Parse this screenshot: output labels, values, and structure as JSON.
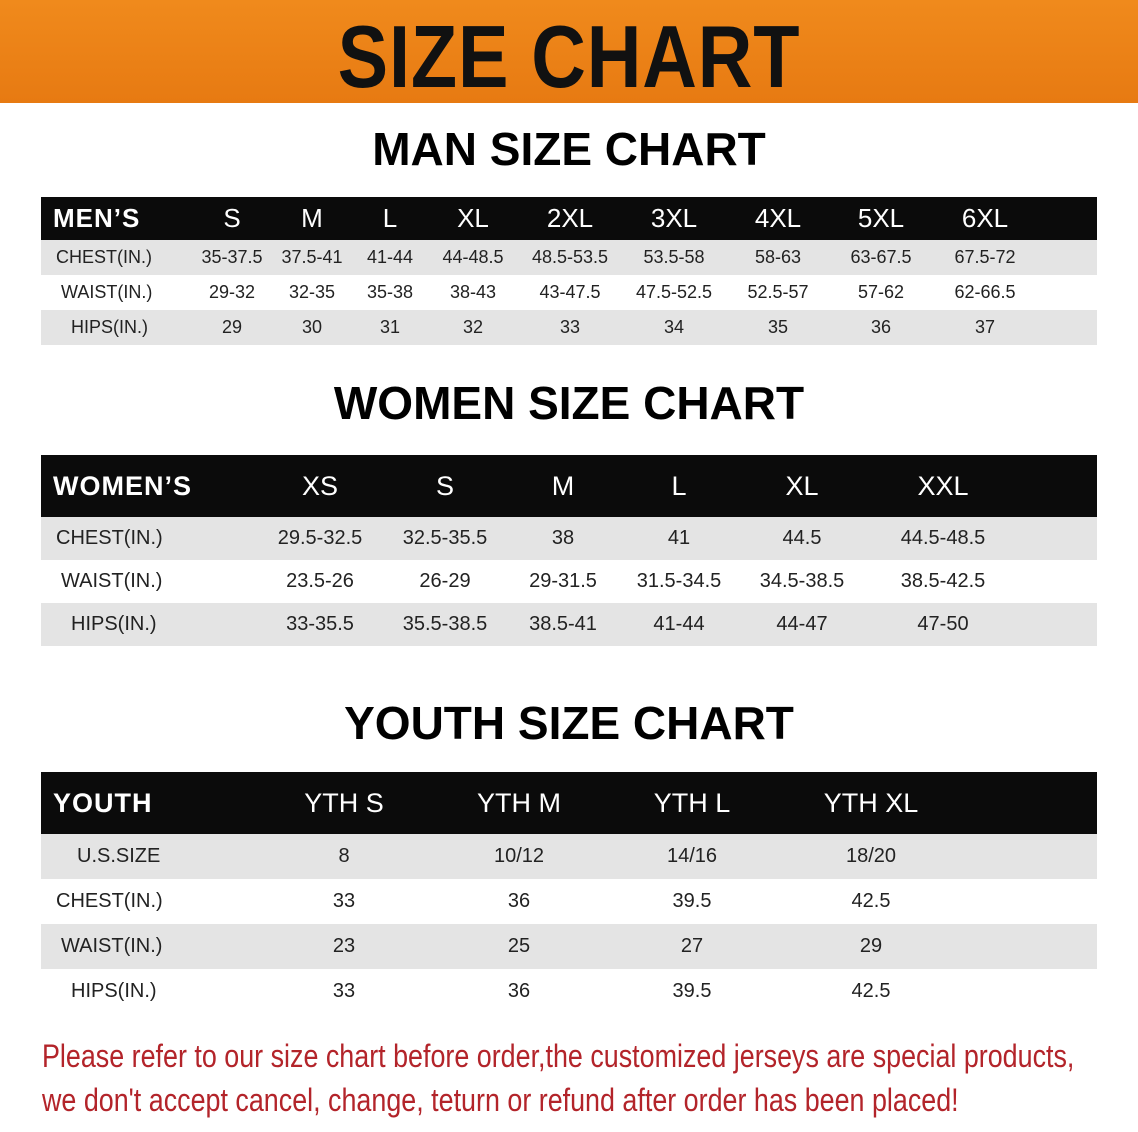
{
  "banner": {
    "title": "SIZE CHART",
    "color": "#e98015"
  },
  "men": {
    "title": "MAN SIZE CHART",
    "header": "MEN’S",
    "sizes": [
      "S",
      "M",
      "L",
      "XL",
      "2XL",
      "3XL",
      "4XL",
      "5XL",
      "6XL"
    ],
    "rows": [
      {
        "label": "CHEST(IN.)",
        "values": [
          "35-37.5",
          "37.5-41",
          "41-44",
          "44-48.5",
          "48.5-53.5",
          "53.5-58",
          "58-63",
          "63-67.5",
          "67.5-72"
        ]
      },
      {
        "label": "WAIST(IN.)",
        "values": [
          "29-32",
          "32-35",
          "35-38",
          "38-43",
          "43-47.5",
          "47.5-52.5",
          "52.5-57",
          "57-62",
          "62-66.5"
        ]
      },
      {
        "label": "HIPS(IN.)",
        "values": [
          "29",
          "30",
          "31",
          "32",
          "33",
          "34",
          "35",
          "36",
          "37"
        ]
      }
    ]
  },
  "women": {
    "title": "WOMEN SIZE CHART",
    "header": "WOMEN’S",
    "sizes": [
      "XS",
      "S",
      "M",
      "L",
      "XL",
      "XXL"
    ],
    "rows": [
      {
        "label": "CHEST(IN.)",
        "values": [
          "29.5-32.5",
          "32.5-35.5",
          "38",
          "41",
          "44.5",
          "44.5-48.5"
        ]
      },
      {
        "label": "WAIST(IN.)",
        "values": [
          "23.5-26",
          "26-29",
          "29-31.5",
          "31.5-34.5",
          "34.5-38.5",
          "38.5-42.5"
        ]
      },
      {
        "label": "HIPS(IN.)",
        "values": [
          "33-35.5",
          "35.5-38.5",
          "38.5-41",
          "41-44",
          "44-47",
          "47-50"
        ]
      }
    ]
  },
  "youth": {
    "title": "YOUTH SIZE CHART",
    "header": "YOUTH",
    "sizes": [
      "YTH S",
      "YTH M",
      "YTH L",
      "YTH XL"
    ],
    "rows": [
      {
        "label": "U.S.SIZE",
        "values": [
          "8",
          "10/12",
          "14/16",
          "18/20"
        ]
      },
      {
        "label": "CHEST(IN.)",
        "values": [
          "33",
          "36",
          "39.5",
          "42.5"
        ]
      },
      {
        "label": "WAIST(IN.)",
        "values": [
          "23",
          "25",
          "27",
          "29"
        ]
      },
      {
        "label": "HIPS(IN.)",
        "values": [
          "33",
          "36",
          "39.5",
          "42.5"
        ]
      }
    ]
  },
  "note": {
    "line1": "Please refer to our size chart before order,the customized jerseys are special products,",
    "line2": "we don't accept cancel, change, teturn or refund after order has been placed!",
    "color": "#b3242a"
  }
}
